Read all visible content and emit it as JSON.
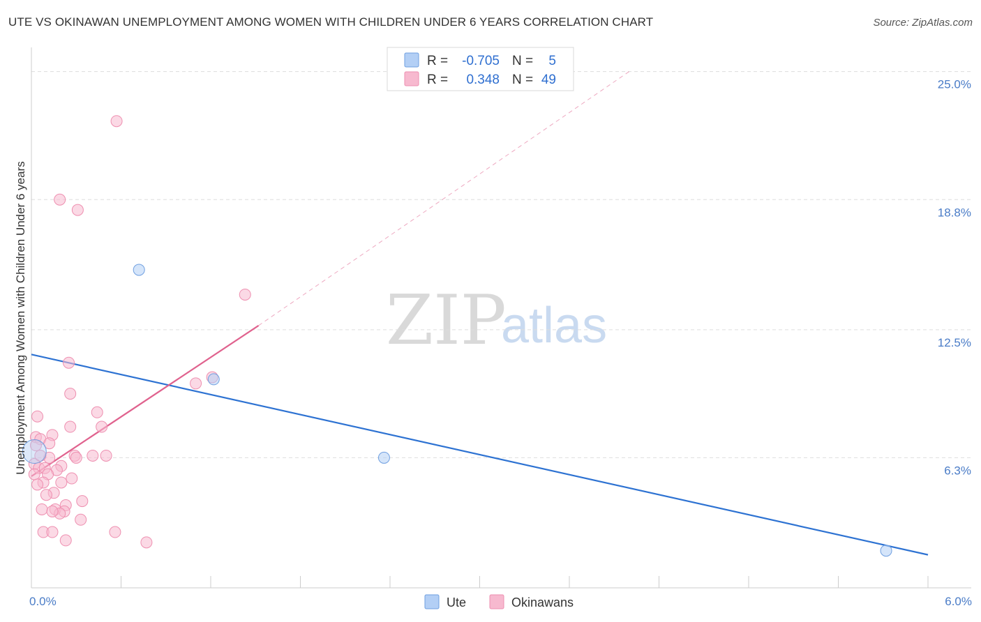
{
  "title": "UTE VS OKINAWAN UNEMPLOYMENT AMONG WOMEN WITH CHILDREN UNDER 6 YEARS CORRELATION CHART",
  "source": "Source: ZipAtlas.com",
  "watermark": {
    "zip": "ZIP",
    "atlas": "atlas"
  },
  "stats": [
    {
      "r_label": "R =",
      "r_value": "-0.705",
      "n_label": "N =",
      "n_value": "5",
      "color": "#b3cff5"
    },
    {
      "r_label": "R =",
      "r_value": "0.348",
      "n_label": "N =",
      "n_value": "49",
      "color": "#f7b9cf"
    }
  ],
  "chart_data": {
    "type": "scatter",
    "title": "UTE VS OKINAWAN UNEMPLOYMENT AMONG WOMEN WITH CHILDREN UNDER 6 YEARS CORRELATION CHART",
    "xlabel": "",
    "ylabel": "Unemployment Among Women with Children Under 6 years",
    "xlim": [
      0,
      6
    ],
    "ylim": [
      0,
      25.9
    ],
    "x_tick_labels": [
      "0.0%",
      "6.0%"
    ],
    "y_ticks": [
      6.3,
      12.5,
      18.8,
      25.0
    ],
    "y_tick_labels": [
      "6.3%",
      "12.5%",
      "18.8%",
      "25.0%"
    ],
    "legend": [
      "Ute",
      "Okinawans"
    ],
    "series": [
      {
        "name": "Ute",
        "color": "#6f9fe0",
        "fill": "#b3cff5",
        "trend_color": "#2d72d2",
        "points": [
          [
            0.72,
            15.4
          ],
          [
            1.22,
            10.1
          ],
          [
            2.36,
            6.3
          ],
          [
            5.72,
            1.8
          ],
          [
            0.02,
            6.6
          ]
        ],
        "trend": {
          "x0": 0.0,
          "y0": 11.3,
          "x1": 6.0,
          "y1": 1.6
        }
      },
      {
        "name": "Okinawans",
        "color": "#ee8fb0",
        "fill": "#f7b9cf",
        "trend_color": "#e0628e",
        "points": [
          [
            0.57,
            22.6
          ],
          [
            0.19,
            18.8
          ],
          [
            0.31,
            18.3
          ],
          [
            1.43,
            14.2
          ],
          [
            0.25,
            10.9
          ],
          [
            1.21,
            10.2
          ],
          [
            1.1,
            9.9
          ],
          [
            0.26,
            9.4
          ],
          [
            0.44,
            8.5
          ],
          [
            0.04,
            8.3
          ],
          [
            0.47,
            7.8
          ],
          [
            0.26,
            7.8
          ],
          [
            0.14,
            7.4
          ],
          [
            0.03,
            7.3
          ],
          [
            0.06,
            7.2
          ],
          [
            0.12,
            7.0
          ],
          [
            0.5,
            6.4
          ],
          [
            0.29,
            6.4
          ],
          [
            0.41,
            6.4
          ],
          [
            0.3,
            6.3
          ],
          [
            0.12,
            6.3
          ],
          [
            0.02,
            6.0
          ],
          [
            0.2,
            5.9
          ],
          [
            0.05,
            5.8
          ],
          [
            0.09,
            5.8
          ],
          [
            0.17,
            5.7
          ],
          [
            0.11,
            5.5
          ],
          [
            0.02,
            5.5
          ],
          [
            0.27,
            5.3
          ],
          [
            0.08,
            5.1
          ],
          [
            0.2,
            5.1
          ],
          [
            0.04,
            5.0
          ],
          [
            0.15,
            4.6
          ],
          [
            0.1,
            4.5
          ],
          [
            0.34,
            4.2
          ],
          [
            0.23,
            4.0
          ],
          [
            0.07,
            3.8
          ],
          [
            0.16,
            3.8
          ],
          [
            0.22,
            3.7
          ],
          [
            0.19,
            3.6
          ],
          [
            0.14,
            3.7
          ],
          [
            0.33,
            3.3
          ],
          [
            0.08,
            2.7
          ],
          [
            0.14,
            2.7
          ],
          [
            0.56,
            2.7
          ],
          [
            0.23,
            2.3
          ],
          [
            0.77,
            2.2
          ],
          [
            0.03,
            6.9
          ],
          [
            0.06,
            6.4
          ]
        ],
        "trend": {
          "x0": 0.0,
          "y0": 5.4,
          "x1": 1.52,
          "y1": 12.7
        },
        "trend_extension": {
          "x0": 1.52,
          "y0": 12.7,
          "x1": 4.0,
          "y1": 25.0
        }
      }
    ]
  }
}
